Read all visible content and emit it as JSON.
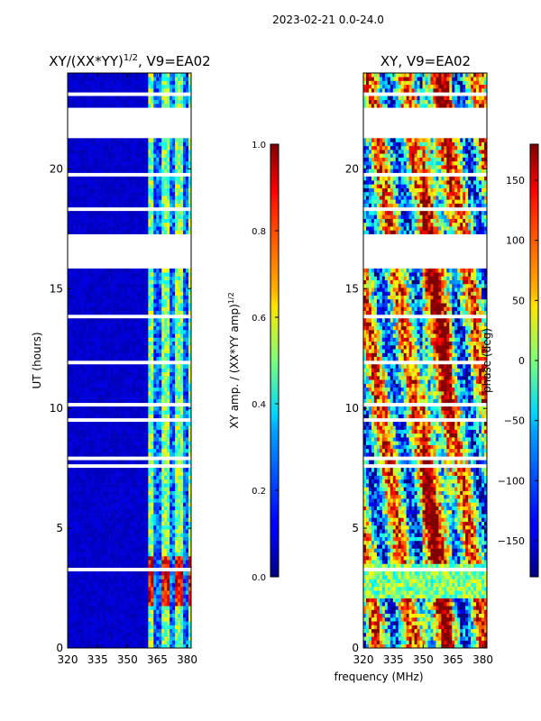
{
  "suptitle": "2023-02-21 0.0-24.0",
  "shared_xlabel": "frequency (MHz)",
  "chart_data": [
    {
      "type": "heatmap",
      "title_text": "XY/(XX*YY)",
      "title_sup": "1/2",
      "title_suffix": ", V9=EA02",
      "xlabel": "",
      "ylabel": "UT (hours)",
      "xlim": [
        320,
        382
      ],
      "ylim": [
        0,
        24
      ],
      "xticks": [
        "320",
        "335",
        "350",
        "365",
        "380"
      ],
      "xtick_values": [
        320,
        335,
        350,
        365,
        380
      ],
      "yticks": [
        "0",
        "5",
        "10",
        "15",
        "20"
      ],
      "ytick_values": [
        0,
        5,
        10,
        15,
        20
      ],
      "blank_ut_ranges": [
        [
          21.3,
          22.5
        ],
        [
          15.8,
          17.2
        ]
      ],
      "bright_band_ut": [
        1.8,
        3.8
      ],
      "active_freq_range": [
        360,
        382
      ],
      "colorbar": {
        "label_text": "XY amp. / (XX*YY amp)",
        "label_sup": "1/2",
        "range": [
          0.0,
          1.0
        ],
        "ticks": [
          "0.0",
          "0.2",
          "0.4",
          "0.6",
          "0.8",
          "1.0"
        ],
        "tick_values": [
          0.0,
          0.2,
          0.4,
          0.6,
          0.8,
          1.0
        ]
      }
    },
    {
      "type": "heatmap",
      "title_text": "XY, V9=EA02",
      "xlabel": "",
      "ylabel": "",
      "xlim": [
        320,
        382
      ],
      "ylim": [
        0,
        24
      ],
      "xticks": [
        "320",
        "335",
        "350",
        "365",
        "380"
      ],
      "xtick_values": [
        320,
        335,
        350,
        365,
        380
      ],
      "yticks": [
        "0",
        "5",
        "10",
        "15",
        "20"
      ],
      "ytick_values": [
        0,
        5,
        10,
        15,
        20
      ],
      "blank_ut_ranges": [
        [
          21.3,
          22.5
        ],
        [
          15.8,
          17.2
        ]
      ],
      "colorbar": {
        "label_text": "phase (deg)",
        "range": [
          -180,
          180
        ],
        "ticks": [
          "−150",
          "−100",
          "−50",
          "0",
          "50",
          "100",
          "150"
        ],
        "tick_values": [
          -150,
          -100,
          -50,
          0,
          50,
          100,
          150
        ]
      }
    }
  ]
}
